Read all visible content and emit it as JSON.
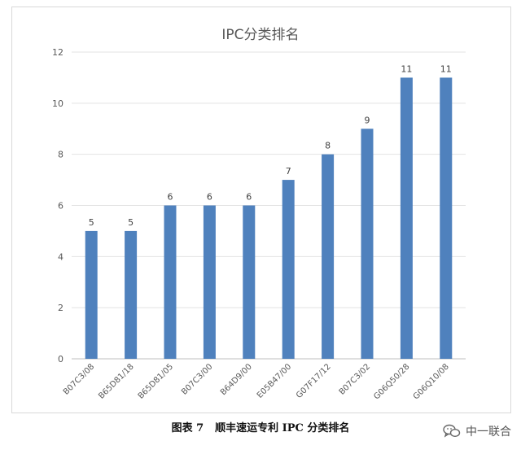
{
  "chart_data": {
    "type": "bar",
    "title": "IPC分类排名",
    "categories": [
      "B07C3/08",
      "B65D81/18",
      "B65D81/05",
      "B07C3/00",
      "B64D9/00",
      "E05B47/00",
      "G07F17/12",
      "B07C3/02",
      "G06Q50/28",
      "G06Q10/08"
    ],
    "values": [
      5,
      5,
      6,
      6,
      6,
      7,
      8,
      9,
      11,
      11
    ],
    "ylim": [
      0,
      12
    ],
    "yticks": [
      0,
      2,
      4,
      6,
      8,
      10,
      12
    ],
    "grid": true,
    "bar_color": "#4f81bd"
  },
  "caption": {
    "number": "图表 7",
    "text": "顺丰速运专利 IPC 分类排名"
  },
  "watermark": {
    "text": "中一联合",
    "icon": "wechat-logo-icon"
  }
}
